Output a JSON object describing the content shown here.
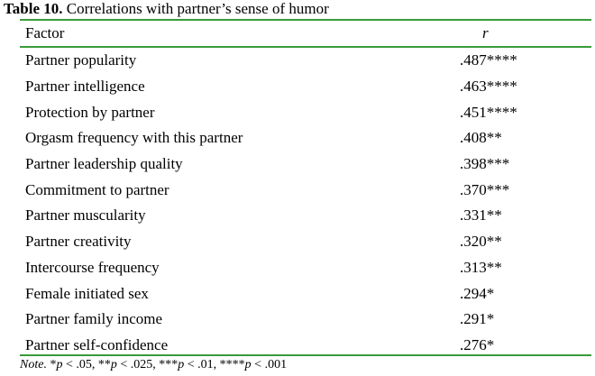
{
  "caption": {
    "label": "Table 10.",
    "text": "Correlations with partner’s sense of humor"
  },
  "header": {
    "factor": "Factor",
    "r": "r"
  },
  "rows": [
    {
      "factor": "Partner popularity",
      "r": ".487****"
    },
    {
      "factor": "Partner intelligence",
      "r": ".463****"
    },
    {
      "factor": "Protection by partner",
      "r": ".451****"
    },
    {
      "factor": "Orgasm frequency with this partner",
      "r": ".408**"
    },
    {
      "factor": "Partner leadership quality",
      "r": ".398***"
    },
    {
      "factor": "Commitment to partner",
      "r": ".370***"
    },
    {
      "factor": "Partner muscularity",
      "r": ".331**"
    },
    {
      "factor": "Partner creativity",
      "r": ".320**"
    },
    {
      "factor": "Intercourse frequency",
      "r": ".313**"
    },
    {
      "factor": "Female initiated sex",
      "r": ".294*"
    },
    {
      "factor": "Partner family income",
      "r": ".291*"
    },
    {
      "factor": "Partner self-confidence",
      "r": ".276*"
    }
  ],
  "note": {
    "label": "Note.",
    "parts": [
      {
        "sym": "*",
        "p": "p",
        "rest": " < .05, "
      },
      {
        "sym": "**",
        "p": "p",
        "rest": " < .025, "
      },
      {
        "sym": "***",
        "p": "p",
        "rest": " < .01, "
      },
      {
        "sym": "****",
        "p": "p",
        "rest": " < .001"
      }
    ]
  },
  "colors": {
    "rule": "#3a9a3a"
  }
}
